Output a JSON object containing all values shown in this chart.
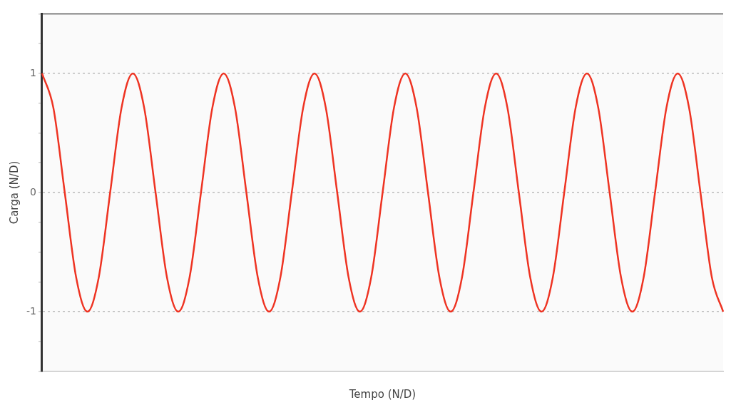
{
  "chart_data": {
    "type": "line",
    "xlabel": "Tempo (N/D)",
    "ylabel": "Carga (N/D)",
    "categories": [
      null,
      null,
      null,
      null,
      null,
      null,
      null,
      null,
      null,
      null,
      null,
      null,
      null,
      null,
      null,
      null,
      null,
      null,
      null,
      null,
      null,
      null,
      null,
      null,
      null,
      null,
      null,
      null,
      null,
      null,
      null,
      null,
      null,
      null,
      null,
      null,
      null,
      null,
      null,
      null,
      null,
      null,
      null,
      null,
      null,
      null,
      null,
      null,
      null,
      null,
      null,
      null,
      null,
      null,
      null,
      null,
      null,
      null,
      null,
      null,
      null
    ],
    "series": [
      {
        "color": "#ee3322",
        "values": [
          1,
          0.71,
          0,
          -0.71,
          -1,
          -0.71,
          0,
          0.71,
          1,
          0.71,
          0,
          -0.71,
          -1,
          -0.71,
          0,
          0.71,
          1,
          0.71,
          0,
          -0.71,
          -1,
          -0.71,
          0,
          0.71,
          1,
          0.71,
          0,
          -0.71,
          -1,
          -0.71,
          0,
          0.71,
          1,
          0.71,
          0,
          -0.71,
          -1,
          -0.71,
          0,
          0.71,
          1,
          0.71,
          0,
          -0.71,
          -1,
          -0.71,
          0,
          0.71,
          1,
          0.71,
          0,
          -0.71,
          -1,
          -0.71,
          0,
          0.71,
          1,
          0.71,
          0,
          -0.71,
          -1
        ]
      }
    ],
    "ylim": [
      -1.5,
      1.5
    ],
    "yticks": [
      {
        "value": -1.5,
        "label": null
      },
      {
        "value": -1.25,
        "label": null
      },
      -1,
      {
        "value": -0.75,
        "label": null
      },
      {
        "value": -0.5,
        "label": null
      },
      {
        "value": -0.25,
        "label": null
      },
      0,
      {
        "value": 0.25,
        "label": null
      },
      {
        "value": 0.5,
        "label": null
      },
      {
        "value": 0.75,
        "label": null
      },
      1,
      {
        "value": 1.25,
        "label": null
      },
      {
        "value": 1.5,
        "label": null
      }
    ],
    "grid": "y",
    "legend": false,
    "marker": "none",
    "line_style": "solid"
  }
}
